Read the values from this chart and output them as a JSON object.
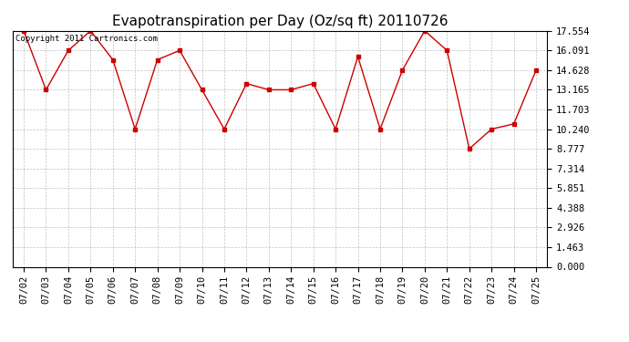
{
  "title": "Evapotranspiration per Day (Oz/sq ft) 20110726",
  "copyright": "Copyright 2011 Cartronics.com",
  "dates": [
    "07/02",
    "07/03",
    "07/04",
    "07/05",
    "07/06",
    "07/07",
    "07/08",
    "07/09",
    "07/10",
    "07/11",
    "07/12",
    "07/13",
    "07/14",
    "07/15",
    "07/16",
    "07/17",
    "07/18",
    "07/19",
    "07/20",
    "07/21",
    "07/22",
    "07/23",
    "07/24",
    "07/25"
  ],
  "values": [
    17.554,
    13.165,
    16.091,
    17.554,
    15.4,
    10.24,
    15.4,
    16.091,
    13.165,
    10.24,
    13.628,
    13.165,
    13.165,
    13.628,
    10.24,
    15.628,
    10.24,
    14.628,
    17.554,
    16.091,
    8.777,
    10.24,
    10.628,
    14.628
  ],
  "yticks": [
    0.0,
    1.463,
    2.926,
    4.388,
    5.851,
    7.314,
    8.777,
    10.24,
    11.703,
    13.165,
    14.628,
    16.091,
    17.554
  ],
  "ylim": [
    0.0,
    17.554
  ],
  "line_color": "#cc0000",
  "marker_color": "#cc0000",
  "bg_color": "#ffffff",
  "grid_color": "#bbbbbb",
  "title_fontsize": 11,
  "copyright_fontsize": 6.5,
  "tick_fontsize": 7.5
}
